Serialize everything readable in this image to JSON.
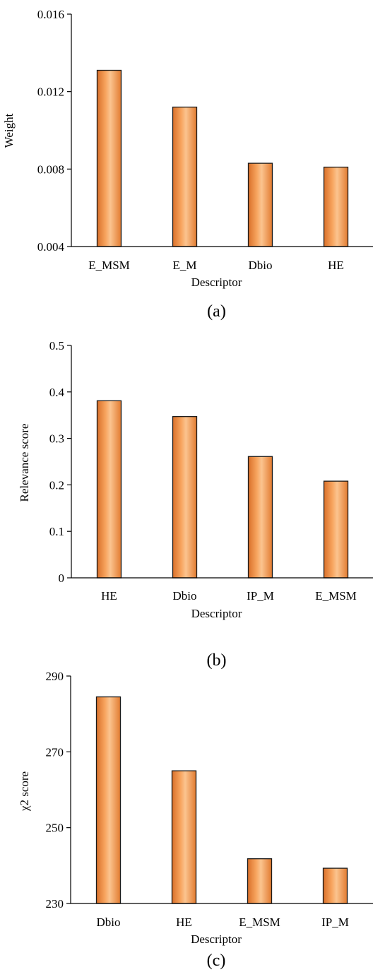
{
  "colors": {
    "bar_fill": "#F28C3A",
    "bar_highlight": "#FBC48F",
    "bar_edge": "#1a1a1a",
    "axis": "#000000"
  },
  "chart_data": [
    {
      "type": "bar",
      "panel_label": "(a)",
      "categories": [
        "E_MSM",
        "E_M",
        "Dbio",
        "HE"
      ],
      "values": [
        0.0131,
        0.0112,
        0.0083,
        0.0081
      ],
      "xlabel": "Descriptor",
      "ylabel": "Weight",
      "ylim": [
        0.004,
        0.016
      ],
      "yticks": [
        "0.004",
        "0.008",
        "0.012",
        "0.016"
      ],
      "grid": false
    },
    {
      "type": "bar",
      "panel_label": "(b)",
      "categories": [
        "HE",
        "Dbio",
        "IP_M",
        "E_MSM"
      ],
      "values": [
        0.381,
        0.347,
        0.261,
        0.208
      ],
      "xlabel": "Descriptor",
      "ylabel": "Relevance score",
      "ylim": [
        0,
        0.5
      ],
      "yticks": [
        "0",
        "0.1",
        "0.2",
        "0.3",
        "0.4",
        "0.5"
      ],
      "grid": false
    },
    {
      "type": "bar",
      "panel_label": "(c)",
      "categories": [
        "Dbio",
        "HE",
        "E_MSM",
        "IP_M"
      ],
      "values": [
        284.5,
        265.0,
        241.8,
        239.3
      ],
      "xlabel": "Descriptor",
      "ylabel": "χ2 score",
      "ylim": [
        230,
        290
      ],
      "yticks": [
        "230",
        "250",
        "270",
        "290"
      ],
      "grid": false
    }
  ]
}
